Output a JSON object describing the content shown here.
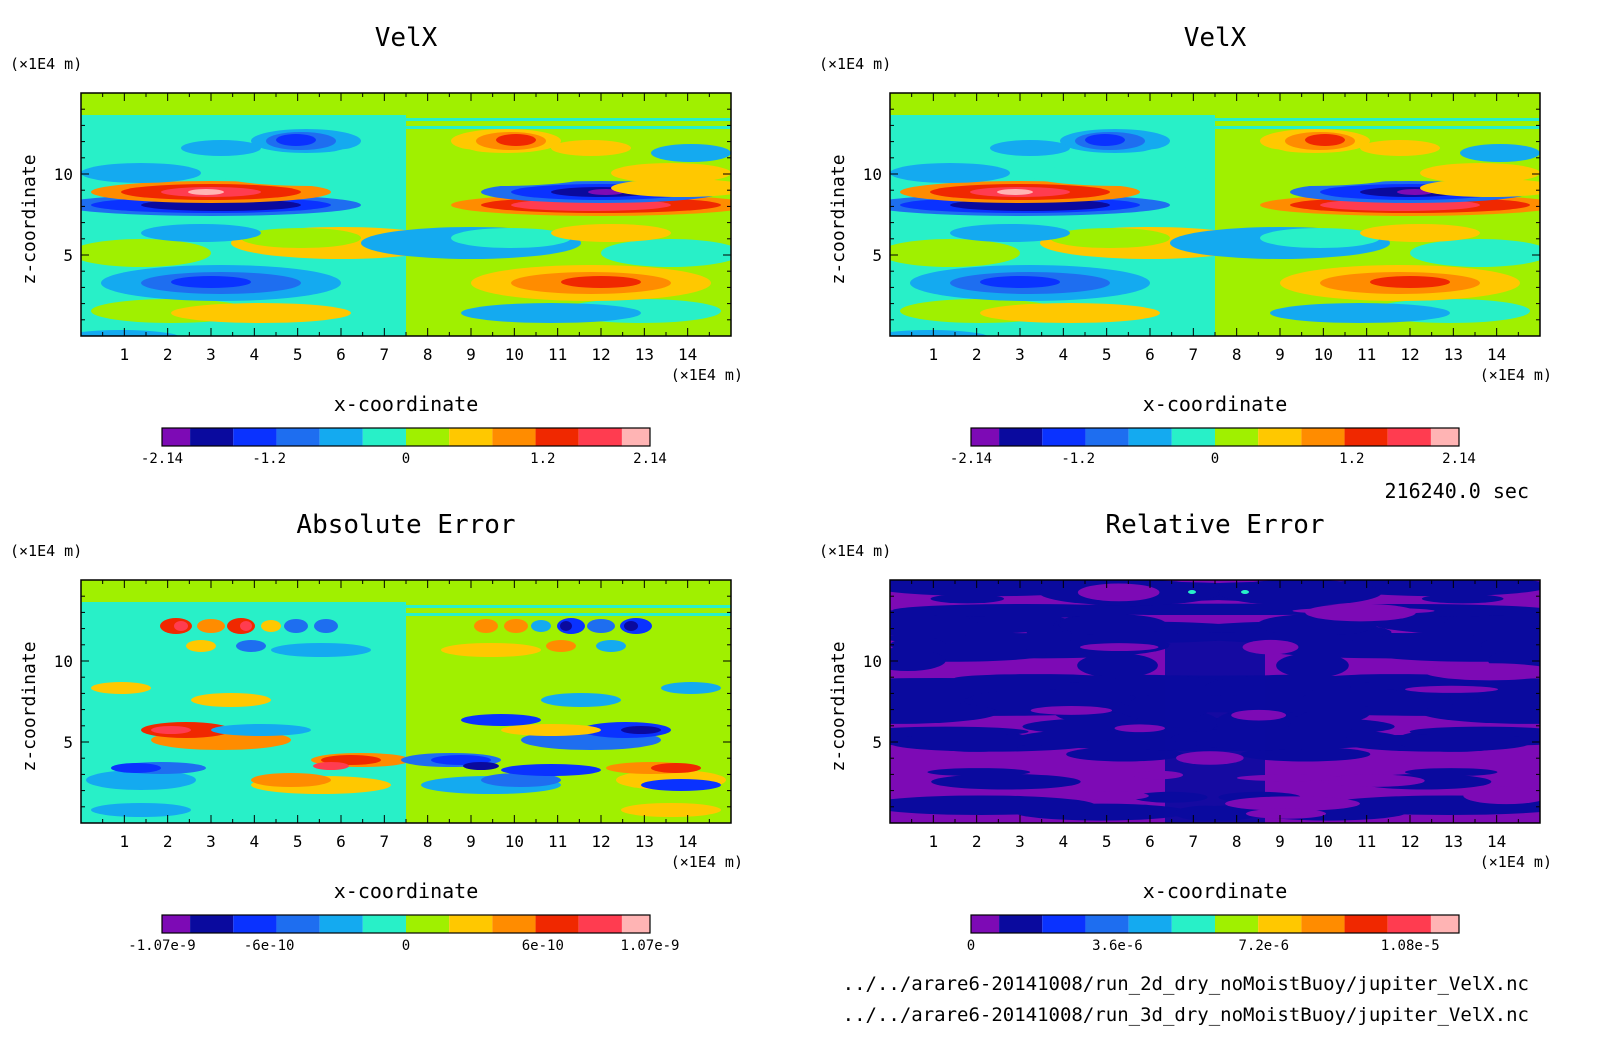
{
  "time_label": "216240.0 sec",
  "files": [
    "../../arare6-20141008/run_2d_dry_noMoistBuoy/jupiter_VelX.nc",
    "../../arare6-20141008/run_3d_dry_noMoistBuoy/jupiter_VelX.nc"
  ],
  "palette": [
    "#7d0ab5",
    "#0a0a9e",
    "#0a32ff",
    "#1e6ef0",
    "#14aaf0",
    "#28f0c8",
    "#a0f000",
    "#ffc800",
    "#ff8c00",
    "#f02800",
    "#ff3c50",
    "#ffb4b4"
  ],
  "chart_data": [
    {
      "type": "heatmap",
      "title": "VelX",
      "xlabel": "x-coordinate",
      "ylabel": "z-coordinate",
      "x_unit": "(×1E4 m)",
      "y_unit": "(×1E4 m)",
      "xlim": [
        0,
        15
      ],
      "ylim": [
        0,
        15
      ],
      "x_ticks": [
        "1",
        "2",
        "3",
        "4",
        "5",
        "6",
        "7",
        "8",
        "9",
        "10",
        "11",
        "12",
        "13",
        "14"
      ],
      "y_ticks": [
        "5",
        "10"
      ],
      "colorbar_labels": [
        "-2.14",
        "-1.2",
        "0",
        "1.2",
        "2.14"
      ],
      "colorbar_range": [
        -2.14,
        2.14
      ],
      "pattern": "velx"
    },
    {
      "type": "heatmap",
      "title": "VelX",
      "xlabel": "x-coordinate",
      "ylabel": "z-coordinate",
      "x_unit": "(×1E4 m)",
      "y_unit": "(×1E4 m)",
      "xlim": [
        0,
        15
      ],
      "ylim": [
        0,
        15
      ],
      "x_ticks": [
        "1",
        "2",
        "3",
        "4",
        "5",
        "6",
        "7",
        "8",
        "9",
        "10",
        "11",
        "12",
        "13",
        "14"
      ],
      "y_ticks": [
        "5",
        "10"
      ],
      "colorbar_labels": [
        "-2.14",
        "-1.2",
        "0",
        "1.2",
        "2.14"
      ],
      "colorbar_range": [
        -2.14,
        2.14
      ],
      "pattern": "velx"
    },
    {
      "type": "heatmap",
      "title": "Absolute Error",
      "xlabel": "x-coordinate",
      "ylabel": "z-coordinate",
      "x_unit": "(×1E4 m)",
      "y_unit": "(×1E4 m)",
      "xlim": [
        0,
        15
      ],
      "ylim": [
        0,
        15
      ],
      "x_ticks": [
        "1",
        "2",
        "3",
        "4",
        "5",
        "6",
        "7",
        "8",
        "9",
        "10",
        "11",
        "12",
        "13",
        "14"
      ],
      "y_ticks": [
        "5",
        "10"
      ],
      "colorbar_labels": [
        "-1.07e-9",
        "-6e-10",
        "0",
        "6e-10",
        "1.07e-9"
      ],
      "colorbar_range": [
        -1.07e-09,
        1.07e-09
      ],
      "pattern": "abs"
    },
    {
      "type": "heatmap",
      "title": "Relative Error",
      "xlabel": "x-coordinate",
      "ylabel": "z-coordinate",
      "x_unit": "(×1E4 m)",
      "y_unit": "(×1E4 m)",
      "xlim": [
        0,
        15
      ],
      "ylim": [
        0,
        15
      ],
      "x_ticks": [
        "1",
        "2",
        "3",
        "4",
        "5",
        "6",
        "7",
        "8",
        "9",
        "10",
        "11",
        "12",
        "13",
        "14"
      ],
      "y_ticks": [
        "5",
        "10"
      ],
      "colorbar_labels": [
        "0",
        "3.6e-6",
        "7.2e-6",
        "1.08e-5"
      ],
      "colorbar_range": [
        0,
        1.2e-05
      ],
      "pattern": "rel"
    }
  ]
}
